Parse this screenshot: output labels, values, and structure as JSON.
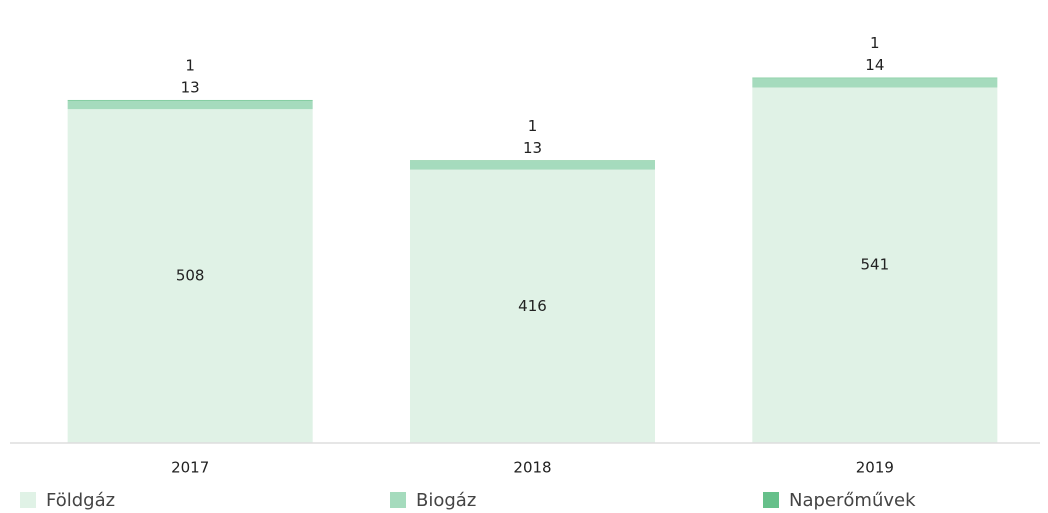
{
  "chart_data": {
    "type": "stacked_bar",
    "categories": [
      "2017",
      "2018",
      "2019"
    ],
    "series": [
      {
        "name": "Földgáz",
        "color": "#e0f2e6",
        "values": [
          508,
          416,
          541
        ]
      },
      {
        "name": "Biogáz",
        "color": "#a5dbbd",
        "values": [
          13,
          13,
          14
        ]
      },
      {
        "name": "Naperőművek",
        "color": "#66c08a",
        "values": [
          1,
          1,
          1
        ]
      }
    ],
    "ylim": [
      0,
      560
    ]
  }
}
